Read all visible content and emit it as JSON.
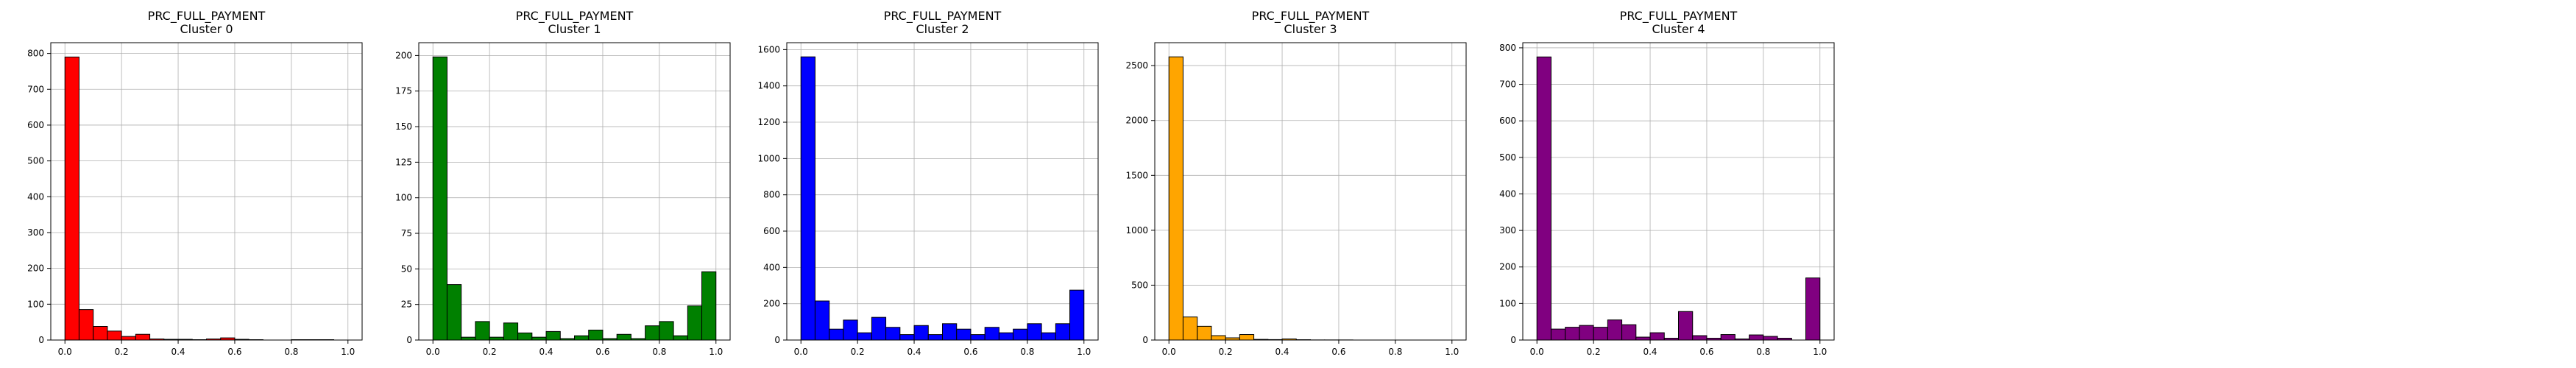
{
  "chart_data": [
    {
      "type": "bar",
      "title": "PRC_FULL_PAYMENT",
      "subtitle": "Cluster 0",
      "color": "#ff0000",
      "bin_edges": [
        0,
        0.05,
        0.1,
        0.15,
        0.2,
        0.25,
        0.3,
        0.35,
        0.4,
        0.45,
        0.5,
        0.55,
        0.6,
        0.65,
        0.7,
        0.75,
        0.8,
        0.85,
        0.9,
        0.95,
        1.0
      ],
      "values": [
        790,
        85,
        38,
        25,
        10,
        16,
        3,
        2,
        2,
        1,
        3,
        6,
        2,
        1,
        0,
        0,
        1,
        1,
        1,
        0
      ],
      "xlim": [
        -0.05,
        1.05
      ],
      "ylim": [
        0,
        830
      ],
      "xticks": [
        "0.0",
        "0.2",
        "0.4",
        "0.6",
        "0.8",
        "1.0"
      ],
      "yticks": [
        "0",
        "100",
        "200",
        "300",
        "400",
        "500",
        "600",
        "700",
        "800"
      ],
      "grid": true
    },
    {
      "type": "bar",
      "title": "PRC_FULL_PAYMENT",
      "subtitle": "Cluster 1",
      "color": "#008000",
      "bin_edges": [
        0,
        0.05,
        0.1,
        0.15,
        0.2,
        0.25,
        0.3,
        0.35,
        0.4,
        0.45,
        0.5,
        0.55,
        0.6,
        0.65,
        0.7,
        0.75,
        0.8,
        0.85,
        0.9,
        0.95,
        1.0
      ],
      "values": [
        199,
        39,
        2,
        13,
        2,
        12,
        5,
        2,
        6,
        1,
        3,
        7,
        1,
        4,
        1,
        10,
        13,
        3,
        24,
        48
      ],
      "xlim": [
        -0.05,
        1.05
      ],
      "ylim": [
        0,
        209
      ],
      "xticks": [
        "0.0",
        "0.2",
        "0.4",
        "0.6",
        "0.8",
        "1.0"
      ],
      "yticks": [
        "0",
        "25",
        "50",
        "75",
        "100",
        "125",
        "150",
        "175",
        "200"
      ],
      "grid": true
    },
    {
      "type": "bar",
      "title": "PRC_FULL_PAYMENT",
      "subtitle": "Cluster 2",
      "color": "#0000ff",
      "bin_edges": [
        0,
        0.05,
        0.1,
        0.15,
        0.2,
        0.25,
        0.3,
        0.35,
        0.4,
        0.45,
        0.5,
        0.55,
        0.6,
        0.65,
        0.7,
        0.75,
        0.8,
        0.85,
        0.9,
        0.95,
        1.0
      ],
      "values": [
        1560,
        215,
        60,
        110,
        40,
        125,
        70,
        30,
        80,
        30,
        90,
        60,
        30,
        70,
        40,
        60,
        90,
        40,
        90,
        275
      ],
      "xlim": [
        -0.05,
        1.05
      ],
      "ylim": [
        0,
        1638
      ],
      "xticks": [
        "0.0",
        "0.2",
        "0.4",
        "0.6",
        "0.8",
        "1.0"
      ],
      "yticks": [
        "0",
        "200",
        "400",
        "600",
        "800",
        "1000",
        "1200",
        "1400",
        "1600"
      ],
      "grid": true
    },
    {
      "type": "bar",
      "title": "PRC_FULL_PAYMENT",
      "subtitle": "Cluster 3",
      "color": "#ffa500",
      "bin_edges": [
        0,
        0.05,
        0.1,
        0.15,
        0.2,
        0.25,
        0.3,
        0.35,
        0.4,
        0.45,
        0.5,
        0.55,
        0.6,
        0.65,
        0.7,
        0.75,
        0.8,
        0.85,
        0.9,
        0.95,
        1.0
      ],
      "values": [
        2580,
        210,
        125,
        40,
        20,
        50,
        6,
        4,
        10,
        3,
        1,
        1,
        1,
        0,
        0,
        0,
        0,
        0,
        0,
        0
      ],
      "xlim": [
        -0.05,
        1.05
      ],
      "ylim": [
        0,
        2709
      ],
      "xticks": [
        "0.0",
        "0.2",
        "0.4",
        "0.6",
        "0.8",
        "1.0"
      ],
      "yticks": [
        "0",
        "500",
        "1000",
        "1500",
        "2000",
        "2500"
      ],
      "grid": true
    },
    {
      "type": "bar",
      "title": "PRC_FULL_PAYMENT",
      "subtitle": "Cluster 4",
      "color": "#800080",
      "bin_edges": [
        0,
        0.05,
        0.1,
        0.15,
        0.2,
        0.25,
        0.3,
        0.35,
        0.4,
        0.45,
        0.5,
        0.55,
        0.6,
        0.65,
        0.7,
        0.75,
        0.8,
        0.85,
        0.9,
        0.95,
        1.0
      ],
      "values": [
        775,
        30,
        35,
        40,
        35,
        55,
        42,
        8,
        20,
        5,
        78,
        12,
        5,
        15,
        3,
        14,
        10,
        5,
        0,
        170
      ],
      "xlim": [
        -0.05,
        1.05
      ],
      "ylim": [
        0,
        814
      ],
      "xticks": [
        "0.0",
        "0.2",
        "0.4",
        "0.6",
        "0.8",
        "1.0"
      ],
      "yticks": [
        "0",
        "100",
        "200",
        "300",
        "400",
        "500",
        "600",
        "700",
        "800"
      ],
      "grid": true
    }
  ]
}
